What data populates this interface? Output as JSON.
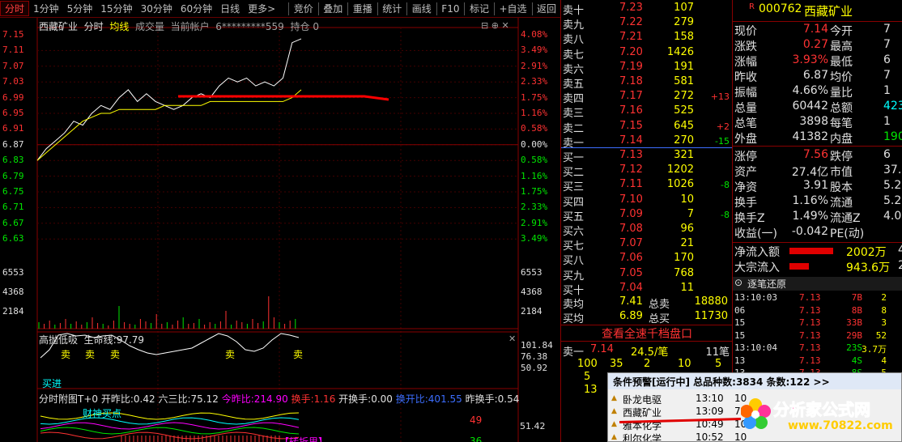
{
  "toolbar": {
    "tabs": [
      "分时",
      "1分钟",
      "5分钟",
      "15分钟",
      "30分钟",
      "60分钟",
      "日线",
      "更多>"
    ],
    "tools": [
      "竞价",
      "叠加",
      "重播",
      "统计",
      "画线",
      "F10",
      "标记",
      "+自选",
      "返回"
    ]
  },
  "chart": {
    "header": {
      "name": "西藏矿业",
      "mode": "分时",
      "avg_label": "均线",
      "vol_label": "成交量",
      "account_label": "当前帐户",
      "account": "6*********559",
      "position_label": "持仓",
      "position": "0"
    },
    "price_ticks": [
      "7.15",
      "7.11",
      "7.07",
      "7.03",
      "6.99",
      "6.95",
      "6.91",
      "6.87",
      "6.83",
      "6.79",
      "6.75",
      "6.71",
      "6.67",
      "6.63"
    ],
    "pct_ticks": [
      "4.08%",
      "3.49%",
      "2.91%",
      "2.33%",
      "1.75%",
      "1.16%",
      "0.58%",
      "0.00%",
      "0.58%",
      "1.16%",
      "1.75%",
      "2.33%",
      "2.91%",
      "3.49%"
    ],
    "vol_ticks": [
      "6553",
      "4368",
      "2184"
    ],
    "ind1": {
      "title": "高抛低吸",
      "line_label": "生命线:",
      "line_value": "97.79",
      "ticks": [
        "101.84",
        "76.38",
        "50.92"
      ],
      "marks": [
        "卖",
        "卖",
        "卖",
        "卖",
        "卖"
      ],
      "buy_mark": "买进"
    },
    "ind2": {
      "title": "分时附图T+0",
      "kaizuo_label": "开昨比:",
      "kaizuo": "0.42",
      "liusan_label": "六三比:",
      "liusan": "75.12",
      "jinzuo_label": "今昨比:",
      "jinzuo": "214.90",
      "huanshou_label": "换手:",
      "huanshou": "1.16",
      "kaihuan_label": "开换手:",
      "kaihuan": "0.00",
      "huankai_label": "换开比:",
      "huankai": "401.55",
      "zuohuan_label": "昨换手:",
      "zuohuan": "0.54",
      "val_49": "49",
      "val_5142": "51.42",
      "val_36": "36",
      "caishen": "财神买点",
      "zhuan": "【转折里】"
    }
  },
  "orderbook": {
    "asks": [
      {
        "label": "卖十",
        "price": "7.23",
        "vol": "107",
        "chg": ""
      },
      {
        "label": "卖九",
        "price": "7.22",
        "vol": "279",
        "chg": ""
      },
      {
        "label": "卖八",
        "price": "7.21",
        "vol": "158",
        "chg": ""
      },
      {
        "label": "卖七",
        "price": "7.20",
        "vol": "1426",
        "chg": ""
      },
      {
        "label": "卖六",
        "price": "7.19",
        "vol": "191",
        "chg": ""
      },
      {
        "label": "卖五",
        "price": "7.18",
        "vol": "581",
        "chg": ""
      },
      {
        "label": "卖四",
        "price": "7.17",
        "vol": "272",
        "chg": "+13"
      },
      {
        "label": "卖三",
        "price": "7.16",
        "vol": "525",
        "chg": ""
      },
      {
        "label": "卖二",
        "price": "7.15",
        "vol": "645",
        "chg": "+2"
      },
      {
        "label": "卖一",
        "price": "7.14",
        "vol": "270",
        "chg": "-15"
      }
    ],
    "bids": [
      {
        "label": "买一",
        "price": "7.13",
        "vol": "321",
        "chg": ""
      },
      {
        "label": "买二",
        "price": "7.12",
        "vol": "1202",
        "chg": ""
      },
      {
        "label": "买三",
        "price": "7.11",
        "vol": "1026",
        "chg": "-8"
      },
      {
        "label": "买四",
        "price": "7.10",
        "vol": "10",
        "chg": ""
      },
      {
        "label": "买五",
        "price": "7.09",
        "vol": "7",
        "chg": "-8"
      },
      {
        "label": "买六",
        "price": "7.08",
        "vol": "96",
        "chg": ""
      },
      {
        "label": "买七",
        "price": "7.07",
        "vol": "21",
        "chg": ""
      },
      {
        "label": "买八",
        "price": "7.06",
        "vol": "170",
        "chg": ""
      },
      {
        "label": "买九",
        "price": "7.05",
        "vol": "768",
        "chg": ""
      },
      {
        "label": "买十",
        "price": "7.04",
        "vol": "11",
        "chg": ""
      }
    ],
    "avg_ask_label": "卖均",
    "avg_ask": "7.41",
    "total_ask_label": "总卖",
    "total_ask": "18880",
    "avg_bid_label": "买均",
    "avg_bid": "6.89",
    "total_bid_label": "总买",
    "total_bid": "11730",
    "link": "查看全速千档盘口",
    "sell1_label": "卖一",
    "sell1_price": "7.14",
    "sell1_avg": "24.5/笔",
    "sell1_count": "11笔",
    "queue": [
      "100",
      "35",
      "2",
      "10",
      "5"
    ],
    "queue2": [
      "5",
      "13"
    ]
  },
  "info": {
    "code": "000762",
    "name": "西藏矿业",
    "rows": [
      {
        "l1": "现价",
        "v1": "7.14",
        "l2": "今开",
        "v2": "7"
      },
      {
        "l1": "涨跌",
        "v1": "0.27",
        "l2": "最高",
        "v2": "7"
      },
      {
        "l1": "涨幅",
        "v1": "3.93%",
        "l2": "最低",
        "v2": "6"
      },
      {
        "l1": "昨收",
        "v1": "6.87",
        "l2": "均价",
        "v2": "7"
      },
      {
        "l1": "振幅",
        "v1": "4.66%",
        "l2": "量比",
        "v2": "1"
      },
      {
        "l1": "总量",
        "v1": "60442",
        "l2": "总额",
        "v2": "4239"
      },
      {
        "l1": "总笔",
        "v1": "3898",
        "l2": "每笔",
        "v2": "1"
      },
      {
        "l1": "外盘",
        "v1": "41382",
        "l2": "内盘",
        "v2": "190"
      },
      {
        "l1": "涨停",
        "v1": "7.56",
        "l2": "跌停",
        "v2": "6"
      },
      {
        "l1": "资产",
        "v1": "27.4亿",
        "l2": "市值",
        "v2": "37.3"
      },
      {
        "l1": "净资",
        "v1": "3.91",
        "l2": "股本",
        "v2": "5.2"
      },
      {
        "l1": "换手",
        "v1": "1.16%",
        "l2": "流通",
        "v2": "5.2"
      },
      {
        "l1": "换手Z",
        "v1": "1.49%",
        "l2": "流通Z",
        "v2": "4.0"
      },
      {
        "l1": "收益(一)",
        "v1": "-0.042",
        "l2": "PE(动)",
        "v2": ""
      }
    ],
    "netflow_label": "净流入额",
    "netflow": "2002万",
    "netflow_tail": "4",
    "bigflow_label": "大宗流入",
    "bigflow": "943.6万",
    "bigflow_tail": "2",
    "ticks_title": "逐笔还原",
    "ticks": [
      {
        "t": "13:10:03",
        "p": "7.13",
        "v": "7B",
        "n": "2"
      },
      {
        "t": "06",
        "p": "7.13",
        "v": "8B",
        "n": "8"
      },
      {
        "t": "15",
        "p": "7.13",
        "v": "33B",
        "n": "3"
      },
      {
        "t": "15",
        "p": "7.13",
        "v": "29B",
        "n": "52"
      },
      {
        "t": "13:10:04",
        "p": "7.13",
        "v": "23S",
        "n": "3.7万"
      },
      {
        "t": "13",
        "p": "7.13",
        "v": "4S",
        "n": "4"
      },
      {
        "t": "13",
        "p": "7.13",
        "v": "8S",
        "n": "5"
      }
    ]
  },
  "alert": {
    "title": "条件预警[运行中] 总品种数:3834 条数:122 >>",
    "rows": [
      {
        "name": "卧龙电驱",
        "time": "13:10",
        "v1": "10"
      },
      {
        "name": "西藏矿业",
        "time": "13:09",
        "v1": "7"
      },
      {
        "name": "雅本化学",
        "time": "10:49",
        "v1": "10"
      },
      {
        "name": "利尔化学",
        "time": "10:52",
        "v1": "10"
      }
    ]
  },
  "logo": {
    "text": "分析家公式网",
    "url": "www.70822.com"
  },
  "chart_data": {
    "type": "line",
    "title": "西藏矿业 分时",
    "ylim": [
      6.63,
      7.15
    ],
    "prev_close": 6.87,
    "series": [
      {
        "name": "价格",
        "values": [
          6.83,
          6.86,
          6.88,
          6.9,
          6.93,
          6.92,
          6.95,
          6.97,
          6.96,
          6.99,
          7.01,
          6.98,
          7.0,
          6.98,
          6.97,
          6.96,
          6.97,
          6.99,
          7.0,
          6.99,
          7.02,
          7.04,
          7.03,
          7.04,
          7.02,
          7.03,
          7.02,
          7.04,
          7.13,
          7.14
        ]
      },
      {
        "name": "均线",
        "values": [
          6.83,
          6.85,
          6.87,
          6.89,
          6.91,
          6.93,
          6.94,
          6.95,
          6.95,
          6.96,
          6.96,
          6.96,
          6.96,
          6.96,
          6.97,
          6.97,
          6.97,
          6.97,
          6.97,
          6.98,
          6.98,
          6.98,
          6.98,
          6.98,
          6.98,
          6.98,
          6.98,
          6.98,
          6.99,
          7.01
        ]
      }
    ]
  }
}
